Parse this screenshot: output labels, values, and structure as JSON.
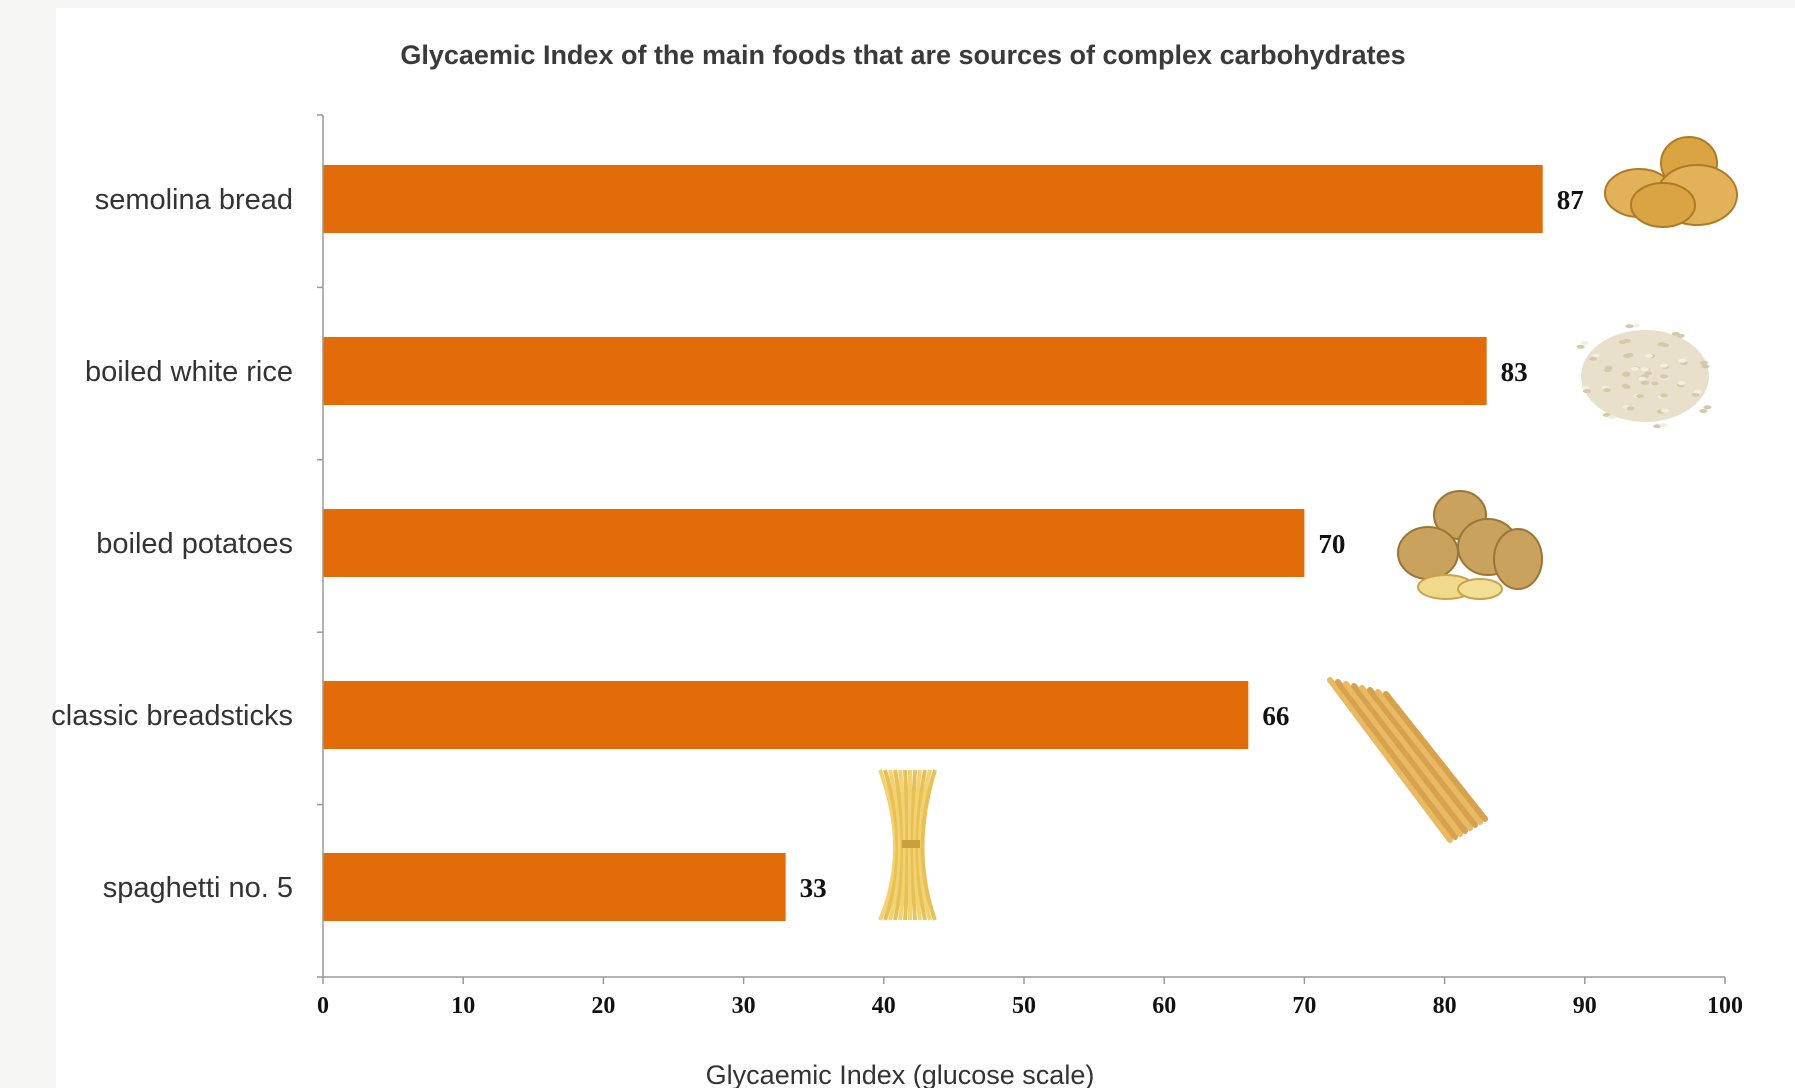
{
  "chart_data": {
    "type": "bar",
    "orientation": "horizontal",
    "title": "Glycaemic Index of the main foods that are sources of complex carbohydrates",
    "xlabel": "Glycaemic Index (glucose scale)",
    "ylabel": "",
    "xlim": [
      0,
      100
    ],
    "xticks": [
      0,
      10,
      20,
      30,
      40,
      50,
      60,
      70,
      80,
      90,
      100
    ],
    "categories": [
      "semolina bread",
      "boiled white rice",
      "boiled potatoes",
      "classic breadsticks",
      "spaghetti no. 5"
    ],
    "values": [
      87,
      83,
      70,
      66,
      33
    ],
    "data_labels": true,
    "grid": false,
    "bar_color": "#e36c0a",
    "item_images": [
      "bread-rolls-image",
      "rice-image",
      "potatoes-image",
      "breadsticks-image",
      "spaghetti-image"
    ]
  },
  "colors": {
    "bar": "#e36c0a",
    "axis": "#999999",
    "background": "#ffffff"
  }
}
